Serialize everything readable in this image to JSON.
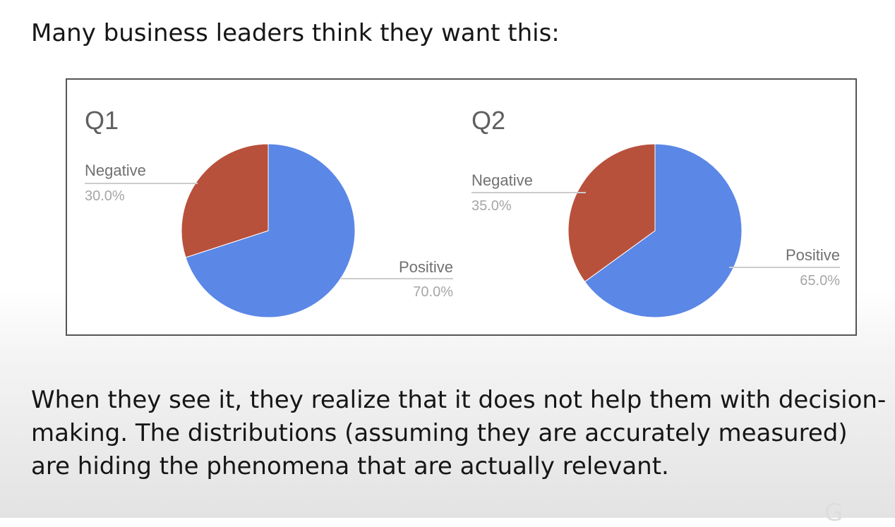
{
  "slide": {
    "heading": "Many business leaders think they want this:",
    "paragraph": "When they see it, they realize that it does not help them with decision-making. The distributions (assuming they are accurately measured) are hiding the phenomena that are actually relevant."
  },
  "colors": {
    "positive": "#5b87e6",
    "negative": "#b8513c",
    "leader_line": "#cccccc"
  },
  "chart_data": [
    {
      "type": "pie",
      "title": "Q1",
      "slices": [
        {
          "label": "Positive",
          "value": 70.0,
          "pct_label": "70.0%"
        },
        {
          "label": "Negative",
          "value": 30.0,
          "pct_label": "30.0%"
        }
      ],
      "legend": "none",
      "start_angle_deg": 0,
      "direction": "clockwise"
    },
    {
      "type": "pie",
      "title": "Q2",
      "slices": [
        {
          "label": "Positive",
          "value": 65.0,
          "pct_label": "65.0%"
        },
        {
          "label": "Negative",
          "value": 35.0,
          "pct_label": "35.0%"
        }
      ],
      "legend": "none",
      "start_angle_deg": 0,
      "direction": "clockwise"
    }
  ]
}
